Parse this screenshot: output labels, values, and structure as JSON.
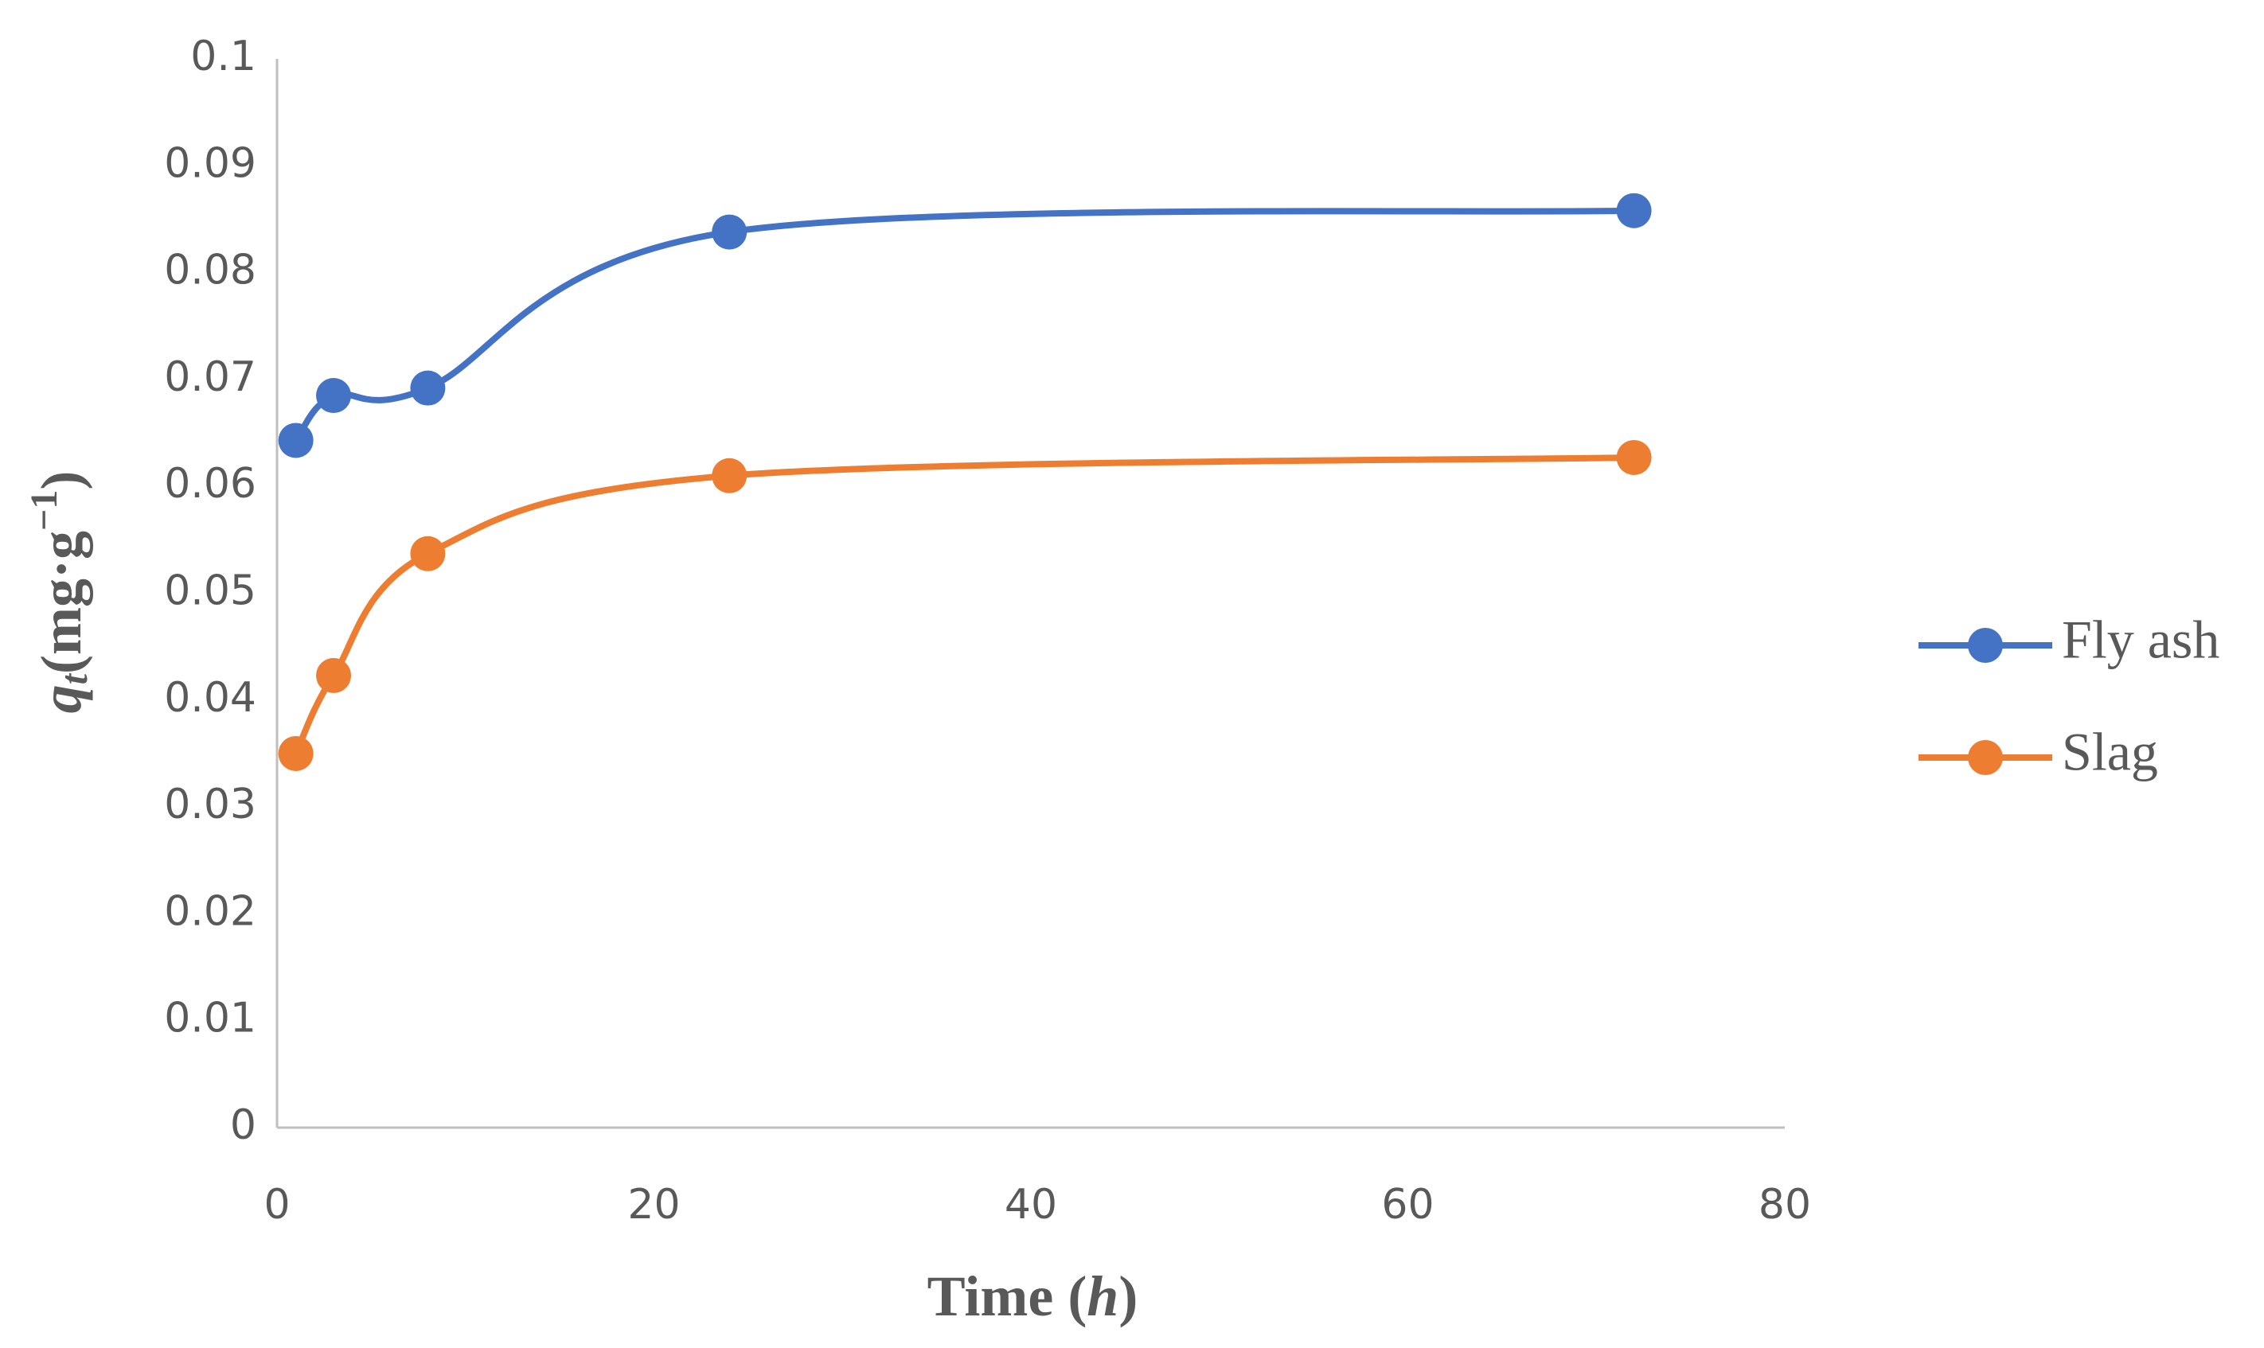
{
  "chart_data": {
    "type": "line",
    "x": [
      1,
      3,
      8,
      24,
      72
    ],
    "series": [
      {
        "name": "Fly ash",
        "color": "#4472c4",
        "values": [
          0.0643,
          0.0685,
          0.0692,
          0.0838,
          0.0858
        ]
      },
      {
        "name": "Slag",
        "color": "#ed7d31",
        "values": [
          0.035,
          0.0423,
          0.0537,
          0.061,
          0.0627
        ]
      }
    ],
    "xlim": [
      0,
      80
    ],
    "xticks": [
      0,
      20,
      40,
      60,
      80
    ],
    "ylim": [
      0,
      0.1
    ],
    "yticks": [
      0,
      0.01,
      0.02,
      0.03,
      0.04,
      0.05,
      0.06,
      0.07,
      0.08,
      0.09,
      0.1
    ],
    "xlabel_parts": [
      "Time (",
      "h",
      ")"
    ],
    "ylabel_parts": [
      "q",
      "t",
      "(mg·g",
      "−1",
      ")"
    ],
    "smooth": true,
    "grid": false,
    "legend": "right"
  }
}
